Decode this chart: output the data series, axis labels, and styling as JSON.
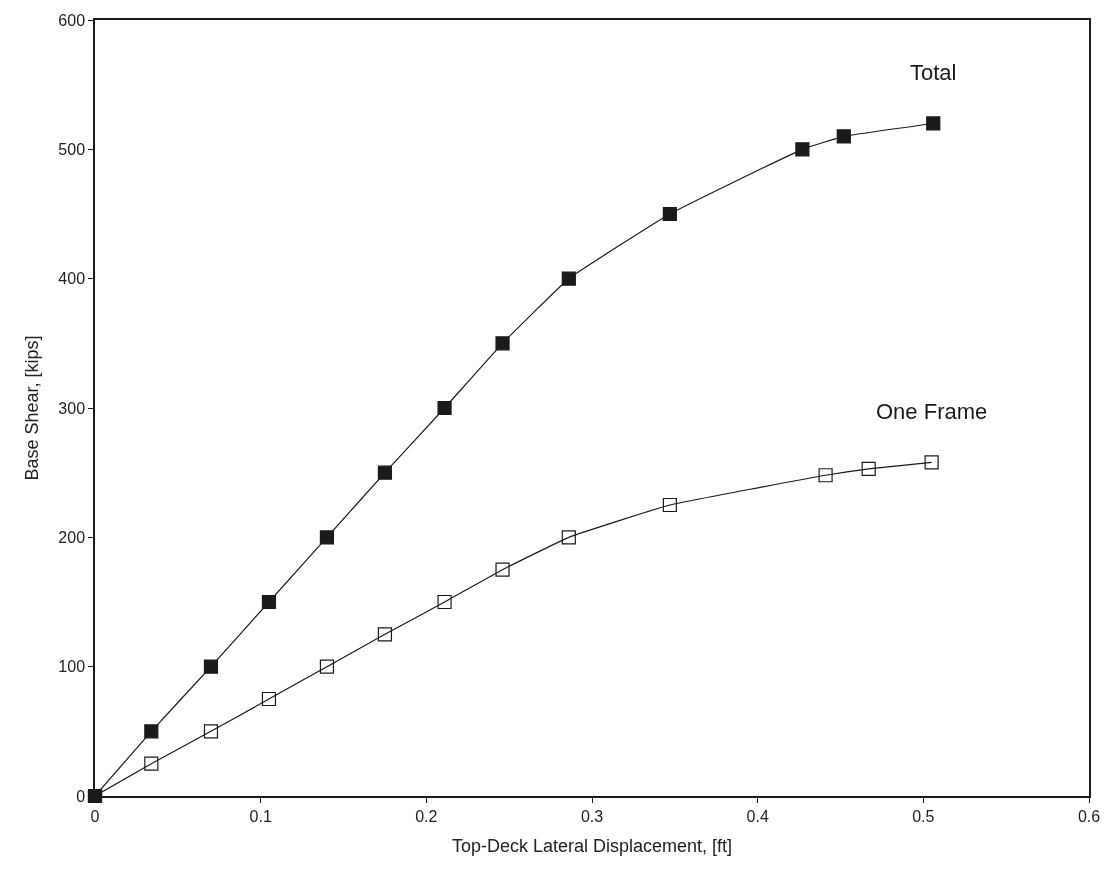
{
  "chart_data": {
    "type": "line",
    "xlabel": "Top-Deck Lateral Displacement, [ft]",
    "ylabel": "Base Shear, [kips]",
    "xlim": [
      0,
      0.6
    ],
    "ylim": [
      0,
      600
    ],
    "xticks": [
      0,
      0.1,
      0.2,
      0.3,
      0.4,
      0.5,
      0.6
    ],
    "yticks": [
      0,
      100,
      200,
      300,
      400,
      500,
      600
    ],
    "legend": false,
    "line_style": "solid",
    "series": [
      {
        "name": "Total",
        "color": "#1a1a1a",
        "marker": "square",
        "x": [
          0,
          0.034,
          0.07,
          0.105,
          0.14,
          0.175,
          0.211,
          0.246,
          0.286,
          0.347,
          0.427,
          0.452,
          0.506
        ],
        "values": [
          0,
          50,
          100,
          150,
          200,
          250,
          300,
          350,
          400,
          450,
          500,
          510,
          520
        ]
      },
      {
        "name": "One Frame",
        "color": "#1a1a1a",
        "marker": "square-open",
        "x": [
          0,
          0.034,
          0.07,
          0.105,
          0.14,
          0.175,
          0.211,
          0.246,
          0.286,
          0.347,
          0.441,
          0.467,
          0.505
        ],
        "values": [
          0,
          25,
          50,
          75,
          100,
          125,
          150,
          175,
          200,
          225,
          248,
          253,
          258
        ]
      }
    ]
  }
}
